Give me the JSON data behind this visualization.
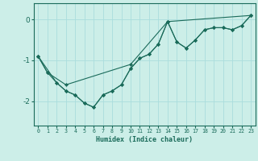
{
  "xlabel": "Humidex (Indice chaleur)",
  "bg_color": "#cceee8",
  "grid_color": "#aadddd",
  "line_color": "#1a6b5a",
  "xlim": [
    -0.5,
    23.5
  ],
  "ylim": [
    -2.6,
    0.4
  ],
  "yticks": [
    0,
    -1,
    -2
  ],
  "xticks": [
    0,
    1,
    2,
    3,
    4,
    5,
    6,
    7,
    8,
    9,
    10,
    11,
    12,
    13,
    14,
    15,
    16,
    17,
    18,
    19,
    20,
    21,
    22,
    23
  ],
  "series1_x": [
    0,
    1,
    2,
    3,
    4,
    5,
    6,
    7,
    8,
    9,
    10,
    11,
    12,
    13,
    14,
    15,
    16,
    17,
    18,
    19,
    20,
    21,
    22,
    23
  ],
  "series1_y": [
    -0.9,
    -1.3,
    -1.55,
    -1.75,
    -1.85,
    -2.05,
    -2.15,
    -1.85,
    -1.75,
    -1.6,
    -1.2,
    -0.95,
    -0.85,
    -0.6,
    -0.05,
    -0.55,
    -0.7,
    -0.5,
    -0.25,
    -0.2,
    -0.2,
    -0.25,
    -0.15,
    0.1
  ],
  "series2_x": [
    0,
    1,
    3,
    10,
    14,
    15,
    16,
    17,
    18,
    19,
    20,
    21,
    22,
    23
  ],
  "series2_y": [
    -0.9,
    -1.3,
    -1.6,
    -1.1,
    -0.05,
    -0.55,
    -0.7,
    -0.5,
    -0.25,
    -0.2,
    -0.2,
    -0.25,
    -0.15,
    0.1
  ],
  "series3_x": [
    0,
    2,
    3,
    4,
    5,
    6,
    7,
    8,
    9,
    10,
    11,
    12,
    13,
    14,
    23
  ],
  "series3_y": [
    -0.9,
    -1.55,
    -1.75,
    -1.85,
    -2.05,
    -2.15,
    -1.85,
    -1.75,
    -1.6,
    -1.2,
    -0.95,
    -0.85,
    -0.6,
    -0.05,
    0.1
  ]
}
